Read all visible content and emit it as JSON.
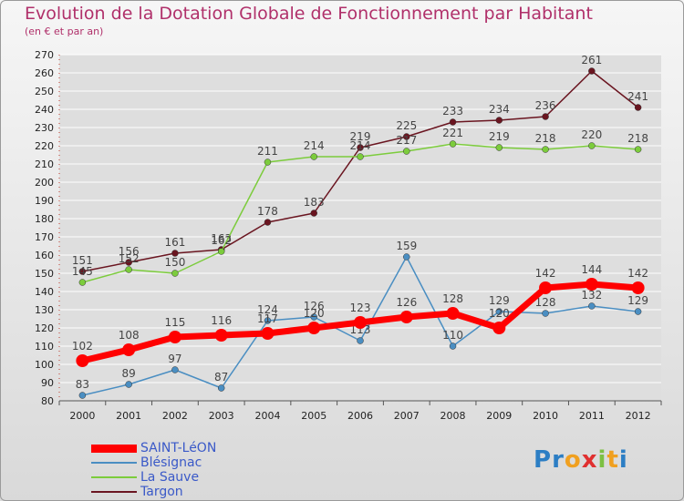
{
  "title": "Evolution de la Dotation Globale de Fonctionnement par Habitant",
  "subtitle": "(en € et par an)",
  "brand": {
    "text": "Proxiti",
    "letters": [
      "P",
      "r",
      "o",
      "x",
      "i",
      "t",
      "i"
    ],
    "colors": [
      "#2c7ec4",
      "#2c7ec4",
      "#f0a020",
      "#e03030",
      "#7cc043",
      "#f0a020",
      "#2c7ec4"
    ]
  },
  "colors": {
    "saint_leon": "#ff0000",
    "blesignac": "#4a8ec2",
    "la_sauve": "#7ccc3c",
    "targon": "#6a1520",
    "grid": "#ffffff",
    "text": "#444444",
    "tick_text": "#222222"
  },
  "chart_data": {
    "type": "line",
    "title": "Evolution de la Dotation Globale de Fonctionnement par Habitant",
    "subtitle": "(en € et par an)",
    "x": [
      "2000",
      "2001",
      "2002",
      "2003",
      "2004",
      "2005",
      "2006",
      "2007",
      "2008",
      "2009",
      "2010",
      "2011",
      "2012"
    ],
    "ylim": [
      80,
      270
    ],
    "yticks": [
      80,
      90,
      100,
      110,
      120,
      130,
      140,
      150,
      160,
      170,
      180,
      190,
      200,
      210,
      220,
      230,
      240,
      250,
      260,
      270
    ],
    "series": [
      {
        "name": "Targon",
        "key": "targon",
        "values": [
          151,
          156,
          161,
          163,
          178,
          183,
          219,
          225,
          233,
          234,
          236,
          261,
          241
        ],
        "labels": [
          "151",
          "156",
          "161",
          "163",
          "178",
          "183",
          "219",
          "225",
          "233",
          "234",
          "236",
          "261",
          "241"
        ]
      },
      {
        "name": "La Sauve",
        "key": "la_sauve",
        "values": [
          145,
          152,
          150,
          162,
          211,
          214,
          214,
          217,
          221,
          219,
          218,
          220,
          218
        ],
        "labels": [
          "145",
          "152",
          "150",
          "162",
          "211",
          "214",
          "214",
          "217",
          "221",
          "219",
          "218",
          "220",
          "218"
        ]
      },
      {
        "name": "Blésignac",
        "key": "blesignac",
        "values": [
          83,
          89,
          97,
          87,
          124,
          126,
          113,
          159,
          110,
          129,
          128,
          132,
          129
        ],
        "labels": [
          "83",
          "89",
          "97",
          "87",
          "124",
          "126",
          "113",
          "159",
          "110",
          "129",
          "128",
          "132",
          "129"
        ]
      },
      {
        "name": "SAINT-LéON",
        "key": "saint_leon",
        "values": [
          102,
          108,
          115,
          116,
          117,
          120,
          123,
          126,
          128,
          120,
          142,
          144,
          142
        ],
        "labels": [
          "102",
          "108",
          "115",
          "116",
          "117",
          "120",
          "123",
          "126",
          "128",
          "120",
          "142",
          "144",
          "142"
        ]
      }
    ],
    "legend": [
      "SAINT-LéON",
      "Blésignac",
      "La Sauve",
      "Targon"
    ]
  }
}
